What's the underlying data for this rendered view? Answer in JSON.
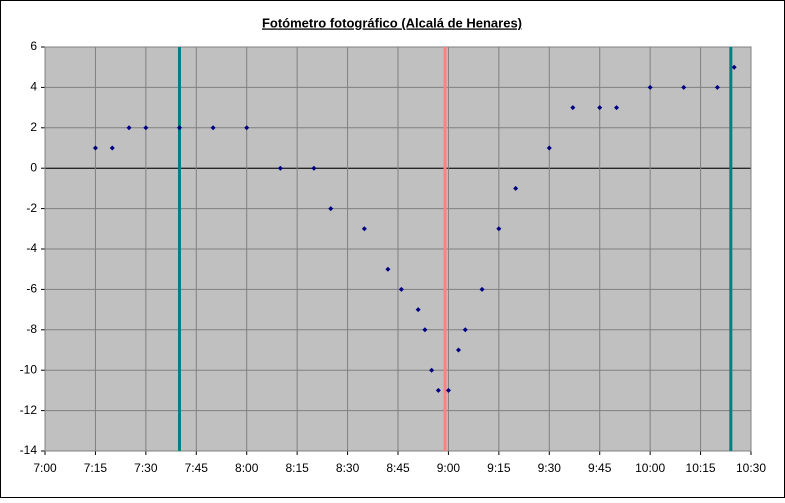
{
  "chart_data": {
    "type": "scatter",
    "title": "Fotómetro fotográfico (Alcalá de Henares)",
    "x": [
      435,
      440,
      445,
      450,
      460,
      470,
      480,
      490,
      500,
      505,
      515,
      522,
      526,
      531,
      533,
      535,
      537,
      540,
      543,
      545,
      550,
      555,
      560,
      570,
      577,
      585,
      590,
      600,
      610,
      620,
      625
    ],
    "series": [
      {
        "color": "#000080",
        "values": [
          1,
          1,
          2,
          2,
          2,
          2,
          2,
          0,
          0,
          -2,
          -3,
          -5,
          -6,
          -7,
          -8,
          -10,
          -11,
          -11,
          -9,
          -8,
          -6,
          -3,
          -1,
          1,
          3,
          3,
          3,
          4,
          4,
          4,
          5
        ]
      }
    ],
    "xlim": [
      420,
      630
    ],
    "xticks": [
      {
        "value": 420,
        "label": "7:00"
      },
      {
        "value": 435,
        "label": "7:15"
      },
      {
        "value": 450,
        "label": "7:30"
      },
      {
        "value": 465,
        "label": "7:45"
      },
      {
        "value": 480,
        "label": "8:00"
      },
      {
        "value": 495,
        "label": "8:15"
      },
      {
        "value": 510,
        "label": "8:30"
      },
      {
        "value": 525,
        "label": "8:45"
      },
      {
        "value": 540,
        "label": "9:00"
      },
      {
        "value": 555,
        "label": "9:15"
      },
      {
        "value": 570,
        "label": "9:30"
      },
      {
        "value": 585,
        "label": "9:45"
      },
      {
        "value": 600,
        "label": "10:00"
      },
      {
        "value": 615,
        "label": "10:15"
      },
      {
        "value": 630,
        "label": "10:30"
      }
    ],
    "ylim": [
      -14,
      6
    ],
    "yticks": [
      -14,
      -12,
      -10,
      -8,
      -6,
      -4,
      -2,
      0,
      2,
      4,
      6
    ],
    "grid": true,
    "zero_line": true,
    "vertical_lines": [
      {
        "x": 460,
        "color": "#008080"
      },
      {
        "x": 539,
        "color": "#ff8080"
      },
      {
        "x": 624,
        "color": "#008080"
      }
    ]
  }
}
